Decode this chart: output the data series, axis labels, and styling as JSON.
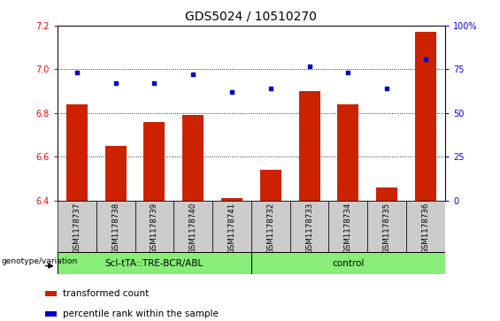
{
  "title": "GDS5024 / 10510270",
  "samples": [
    "GSM1178737",
    "GSM1178738",
    "GSM1178739",
    "GSM1178740",
    "GSM1178741",
    "GSM1178732",
    "GSM1178733",
    "GSM1178734",
    "GSM1178735",
    "GSM1178736"
  ],
  "transformed_count": [
    6.84,
    6.65,
    6.76,
    6.79,
    6.41,
    6.54,
    6.9,
    6.84,
    6.46,
    7.17
  ],
  "percentile_rank": [
    73,
    67,
    67,
    72,
    62,
    64,
    77,
    73,
    64,
    81
  ],
  "bar_color": "#cc2200",
  "dot_color": "#0000cc",
  "ylim_left": [
    6.4,
    7.2
  ],
  "ylim_right": [
    0,
    100
  ],
  "yticks_left": [
    6.4,
    6.6,
    6.8,
    7.0,
    7.2
  ],
  "yticks_right": [
    0,
    25,
    50,
    75,
    100
  ],
  "group1_label": "Scl-tTA::TRE-BCR/ABL",
  "group2_label": "control",
  "group1_count": 5,
  "group2_count": 5,
  "group_color": "#88ee77",
  "xlabel_left": "genotype/variation",
  "legend_bar": "transformed count",
  "legend_dot": "percentile rank within the sample",
  "grid_color": "black",
  "bg_color": "#cccccc",
  "plot_bg": "#ffffff",
  "title_fontsize": 10,
  "tick_fontsize": 7,
  "bar_width": 0.55
}
